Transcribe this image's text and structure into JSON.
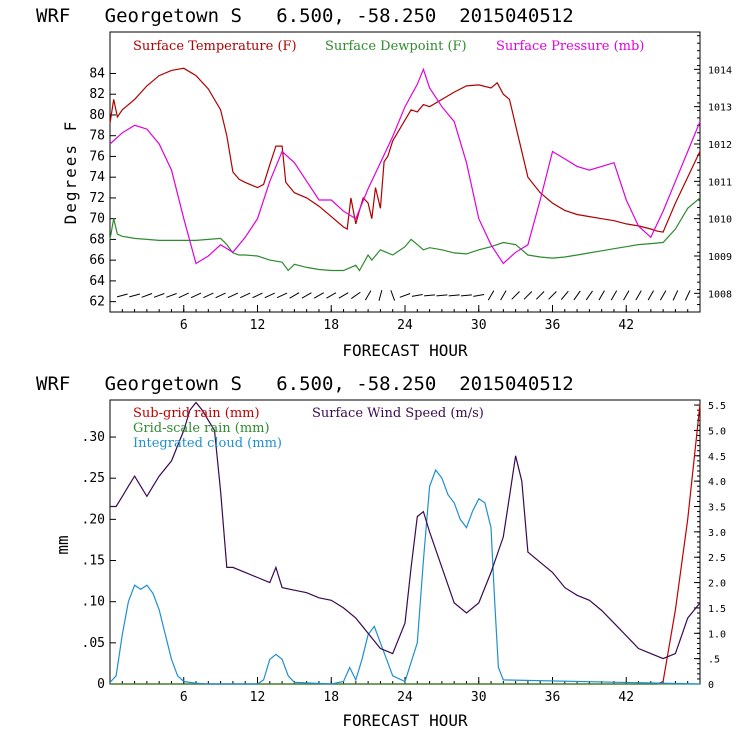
{
  "chart_data": [
    {
      "type": "line",
      "title": "WRF   Georgetown S   6.500, -58.250  2015040512",
      "xlabel": "FORECAST HOUR",
      "ylabel": "Degrees F",
      "y2label": "",
      "xlim": [
        0,
        48
      ],
      "ylim": [
        61,
        88
      ],
      "y2lim": [
        1007.5,
        1015.0
      ],
      "xticks": [
        6,
        12,
        18,
        24,
        30,
        36,
        42
      ],
      "xtick_labels": [
        "6",
        "12",
        "18",
        "24",
        "30",
        "36",
        "42"
      ],
      "yticks": [
        62,
        64,
        66,
        68,
        70,
        72,
        74,
        76,
        78,
        80,
        82,
        84
      ],
      "ytick_labels": [
        "62",
        "64",
        "66",
        "68",
        "70",
        "72",
        "74",
        "76",
        "78",
        "80",
        "82",
        "84"
      ],
      "y2ticks": [
        1008,
        1009,
        1010,
        1011,
        1012,
        1013,
        1014
      ],
      "y2tick_labels": [
        "1008",
        "1009",
        "1010",
        "1011",
        "1012",
        "1013",
        "1014"
      ],
      "grid": false,
      "legend_position": "top-left",
      "series": [
        {
          "name": "Surface Temperature (F)",
          "axis": "left",
          "color": "#b00000",
          "x": [
            0,
            0.3,
            0.6,
            1,
            2,
            3,
            4,
            5,
            5.5,
            6,
            7,
            8,
            9,
            9.5,
            10,
            10.5,
            11,
            12,
            12.5,
            13,
            13.5,
            14,
            14.3,
            15,
            16,
            17,
            18,
            19,
            19.3,
            19.6,
            20,
            20.3,
            20.6,
            21,
            21.3,
            21.6,
            22,
            22.3,
            22.6,
            23,
            24,
            24.5,
            25,
            25.5,
            26,
            27,
            28,
            29,
            30,
            31,
            31.5,
            32,
            32.5,
            33,
            34,
            35,
            36,
            37,
            38,
            39,
            40,
            41,
            42,
            43,
            44,
            44.5,
            45,
            46,
            47,
            48
          ],
          "y": [
            79.2,
            81.5,
            79.8,
            80.5,
            81.5,
            82.8,
            83.8,
            84.3,
            84.4,
            84.5,
            83.8,
            82.5,
            80.5,
            78,
            74.5,
            73.8,
            73.5,
            73,
            73.3,
            75.2,
            77,
            77,
            73.5,
            72.5,
            72,
            71.2,
            70.2,
            69.2,
            69.0,
            72.0,
            69.5,
            70.8,
            72.0,
            71.5,
            70.0,
            73.0,
            71.0,
            75.5,
            76.0,
            77.5,
            79.5,
            80.5,
            80.3,
            81.0,
            80.8,
            81.5,
            82.2,
            82.8,
            82.9,
            82.6,
            83.1,
            82.0,
            81.5,
            79.0,
            74.0,
            72.5,
            71.5,
            70.8,
            70.4,
            70.2,
            70.0,
            69.8,
            69.5,
            69.3,
            69.0,
            68.8,
            68.7,
            71.5,
            74.0,
            76.5
          ]
        },
        {
          "name": "Surface Dewpoint (F)",
          "axis": "left",
          "color": "#2e8b2e",
          "x": [
            0,
            0.3,
            0.6,
            1,
            2,
            3,
            4,
            5,
            6,
            7,
            8,
            9,
            9.5,
            10,
            10.5,
            11,
            12,
            13,
            14,
            14.5,
            15,
            16,
            17,
            18,
            19,
            20,
            20.3,
            21,
            21.3,
            22,
            23,
            24,
            24.5,
            25,
            25.5,
            26,
            27,
            28,
            29,
            30,
            31,
            32,
            33,
            34,
            35,
            36,
            37,
            38,
            39,
            40,
            41,
            42,
            43,
            44,
            45,
            46,
            47,
            48
          ],
          "y": [
            68.0,
            70.0,
            68.5,
            68.3,
            68.1,
            68.0,
            67.9,
            67.9,
            67.9,
            67.9,
            68.0,
            68.1,
            67.5,
            66.7,
            66.5,
            66.5,
            66.4,
            66.0,
            65.8,
            65.0,
            65.6,
            65.3,
            65.1,
            65.0,
            65.0,
            65.5,
            65.0,
            66.5,
            66.0,
            67.0,
            66.5,
            67.3,
            68.0,
            67.5,
            67.0,
            67.2,
            67.0,
            66.7,
            66.6,
            67.0,
            67.3,
            67.7,
            67.5,
            66.5,
            66.3,
            66.2,
            66.3,
            66.5,
            66.7,
            66.9,
            67.1,
            67.3,
            67.5,
            67.6,
            67.7,
            69.0,
            71.0,
            72.0
          ]
        },
        {
          "name": "Surface Pressure (mb)",
          "axis": "right",
          "color": "#e000e0",
          "x": [
            0,
            1,
            2,
            3,
            4,
            5,
            6,
            7,
            8,
            9,
            10,
            11,
            12,
            13,
            14,
            15,
            16,
            17,
            18,
            19,
            20,
            21,
            22,
            23,
            24,
            25,
            25.5,
            26,
            27,
            28,
            29,
            30,
            31,
            32,
            33,
            34,
            35,
            36,
            37,
            38,
            39,
            40,
            41,
            42,
            43,
            44,
            45,
            46,
            47,
            48
          ],
          "y": [
            1012.0,
            1012.3,
            1012.5,
            1012.4,
            1012.0,
            1011.3,
            1010.0,
            1008.8,
            1009.0,
            1009.3,
            1009.1,
            1009.5,
            1010.0,
            1011.0,
            1011.8,
            1011.5,
            1011.0,
            1010.5,
            1010.5,
            1010.2,
            1010.0,
            1010.8,
            1011.5,
            1012.2,
            1013.0,
            1013.6,
            1014.0,
            1013.5,
            1013.0,
            1012.6,
            1011.5,
            1010.0,
            1009.3,
            1008.8,
            1009.1,
            1009.3,
            1010.5,
            1011.8,
            1011.6,
            1011.4,
            1011.3,
            1011.4,
            1011.5,
            1010.5,
            1009.8,
            1009.5,
            1010.2,
            1011.0,
            1011.8,
            1012.6
          ]
        }
      ],
      "wind_barbs": {
        "hours": [
          1,
          2,
          3,
          4,
          5,
          6,
          7,
          8,
          9,
          10,
          11,
          12,
          13,
          14,
          15,
          16,
          17,
          18,
          19,
          20,
          21,
          22,
          23,
          24,
          25,
          26,
          27,
          28,
          29,
          30,
          31,
          32,
          33,
          34,
          35,
          36,
          37,
          38,
          39,
          40,
          41,
          42,
          43,
          44,
          45,
          46,
          47
        ],
        "angles_deg": [
          15,
          15,
          20,
          20,
          20,
          25,
          25,
          25,
          25,
          25,
          25,
          25,
          25,
          25,
          30,
          30,
          30,
          30,
          30,
          35,
          60,
          75,
          110,
          20,
          10,
          5,
          5,
          5,
          5,
          10,
          60,
          60,
          45,
          45,
          45,
          45,
          50,
          55,
          55,
          60,
          60,
          60,
          60,
          60,
          60,
          65,
          65
        ]
      }
    },
    {
      "type": "line",
      "title": "WRF   Georgetown S   6.500, -58.250  2015040512",
      "xlabel": "FORECAST HOUR",
      "ylabel": "mm",
      "xlim": [
        0,
        48
      ],
      "ylim": [
        0,
        0.345
      ],
      "y2lim": [
        0,
        5.6
      ],
      "xticks": [
        6,
        12,
        18,
        24,
        30,
        36,
        42
      ],
      "xtick_labels": [
        "6",
        "12",
        "18",
        "24",
        "30",
        "36",
        "42"
      ],
      "yticks": [
        0,
        0.05,
        0.1,
        0.15,
        0.2,
        0.25,
        0.3
      ],
      "ytick_labels": [
        "0",
        ".05",
        ".10",
        ".15",
        ".20",
        ".25",
        ".30"
      ],
      "y2ticks": [
        0,
        0.5,
        1.0,
        1.5,
        2.0,
        2.5,
        3.0,
        3.5,
        4.0,
        4.5,
        5.0,
        5.5
      ],
      "y2tick_labels": [
        "0",
        ".5",
        "1.0",
        "1.5",
        "2.0",
        "2.5",
        "3.0",
        "3.5",
        "4.0",
        "4.5",
        "5.0",
        "5.5"
      ],
      "grid": false,
      "legend_position": "top-left",
      "series": [
        {
          "name": "Sub-grid rain (mm)",
          "axis": "left",
          "color": "#c00000",
          "x": [
            0,
            44.5,
            45,
            46,
            47,
            48
          ],
          "y": [
            0,
            0,
            0.003,
            0.09,
            0.2,
            0.34
          ]
        },
        {
          "name": "Grid-scale rain (mm)",
          "axis": "left",
          "color": "#2e8b2e",
          "x": [
            0,
            48
          ],
          "y": [
            0,
            0
          ]
        },
        {
          "name": "Integrated cloud (mm)",
          "axis": "left",
          "color": "#1f8fd0",
          "x": [
            0,
            0.5,
            1,
            1.5,
            2,
            2.5,
            3,
            3.5,
            4,
            4.5,
            5,
            5.5,
            6,
            6.5,
            7,
            8,
            12,
            12.5,
            13,
            13.5,
            14,
            14.5,
            15,
            18,
            19,
            19.5,
            20,
            20.5,
            21,
            21.5,
            22,
            22.5,
            23,
            24,
            25,
            25.5,
            26,
            26.5,
            27,
            27.5,
            28,
            28.5,
            29,
            29.5,
            30,
            30.5,
            31,
            31.3,
            31.6,
            32,
            48
          ],
          "y": [
            0.002,
            0.01,
            0.06,
            0.1,
            0.12,
            0.115,
            0.12,
            0.11,
            0.09,
            0.06,
            0.03,
            0.01,
            0.003,
            0.002,
            0.001,
            0,
            0,
            0.005,
            0.03,
            0.036,
            0.03,
            0.01,
            0.002,
            0,
            0.003,
            0.02,
            0.005,
            0.03,
            0.06,
            0.07,
            0.05,
            0.03,
            0.01,
            0.003,
            0.05,
            0.15,
            0.24,
            0.26,
            0.25,
            0.23,
            0.22,
            0.2,
            0.19,
            0.21,
            0.225,
            0.22,
            0.19,
            0.1,
            0.02,
            0.005,
            0
          ]
        },
        {
          "name": "Surface Wind Speed (m/s)",
          "axis": "right",
          "color": "#3a0a50",
          "x": [
            0,
            0.5,
            1,
            1.5,
            2,
            2.5,
            3,
            3.5,
            4,
            5,
            6,
            6.5,
            7,
            7.5,
            8,
            8.5,
            9,
            9.5,
            10,
            11,
            12,
            13,
            13.5,
            14,
            15,
            16,
            17,
            18,
            19,
            20,
            21,
            22,
            23,
            24,
            24.5,
            25,
            25.5,
            26,
            27,
            28,
            29,
            30,
            31,
            32,
            32.5,
            33,
            33.5,
            34,
            35,
            36,
            37,
            38,
            39,
            40,
            41,
            42,
            43,
            44,
            45,
            46,
            47,
            48
          ],
          "y": [
            3.5,
            3.5,
            3.7,
            3.9,
            4.1,
            3.9,
            3.7,
            3.9,
            4.1,
            4.4,
            5.0,
            5.4,
            5.55,
            5.4,
            5.2,
            5.0,
            3.8,
            2.3,
            2.3,
            2.2,
            2.1,
            2.0,
            2.3,
            1.9,
            1.85,
            1.8,
            1.7,
            1.65,
            1.5,
            1.3,
            1.0,
            0.7,
            0.6,
            1.2,
            2.3,
            3.3,
            3.4,
            3.0,
            2.3,
            1.6,
            1.4,
            1.6,
            2.2,
            2.9,
            3.7,
            4.5,
            4.0,
            2.6,
            2.4,
            2.2,
            1.9,
            1.75,
            1.65,
            1.45,
            1.2,
            0.95,
            0.7,
            0.6,
            0.5,
            0.6,
            1.3,
            1.6
          ]
        }
      ]
    }
  ]
}
